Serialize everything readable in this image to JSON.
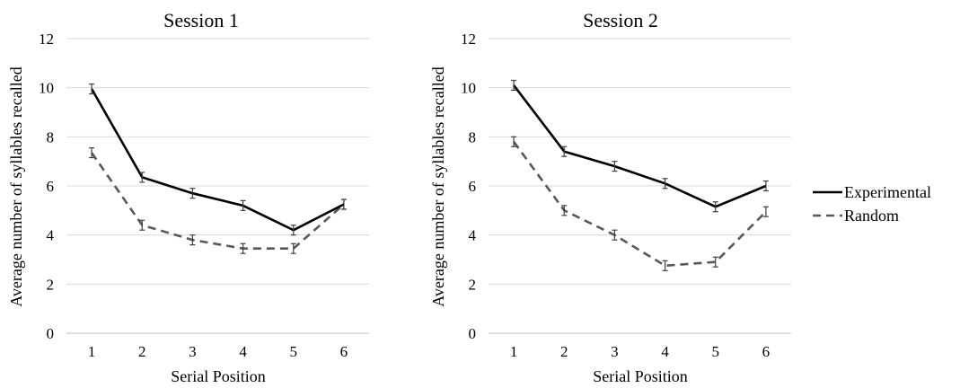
{
  "colors": {
    "experimental": "#000000",
    "random": "#595959",
    "grid": "#d9d9d9",
    "axis": "#bfbfbf",
    "error_bar": "#404040"
  },
  "legend": {
    "placement": "right",
    "items": [
      {
        "label": "Experimental",
        "color": "#000000",
        "style": "solid"
      },
      {
        "label": "Random",
        "color": "#595959",
        "style": "dashed"
      }
    ]
  },
  "chart_data": [
    {
      "type": "line",
      "title": "Session 1",
      "xlabel": "Serial Position",
      "ylabel": "Average number of syllables recalled",
      "x": [
        1,
        2,
        3,
        4,
        5,
        6
      ],
      "x_tick_labels": [
        "1",
        "2",
        "3",
        "4",
        "5",
        "6"
      ],
      "ylim": [
        0,
        12
      ],
      "y_ticks": [
        0,
        2,
        4,
        6,
        8,
        10,
        12
      ],
      "grid": "horizontal",
      "series": [
        {
          "name": "Experimental",
          "style": "solid",
          "values": [
            9.95,
            6.35,
            5.7,
            5.2,
            4.2,
            5.25
          ],
          "errors": [
            0.2,
            0.2,
            0.2,
            0.2,
            0.2,
            0.2
          ]
        },
        {
          "name": "Random",
          "style": "dashed",
          "values": [
            7.35,
            4.4,
            3.8,
            3.45,
            3.45,
            5.25
          ],
          "errors": [
            0.2,
            0.2,
            0.2,
            0.2,
            0.2,
            0.2
          ]
        }
      ]
    },
    {
      "type": "line",
      "title": "Session 2",
      "xlabel": "Serial Position",
      "ylabel": "Average number of syllables recalled",
      "x": [
        1,
        2,
        3,
        4,
        5,
        6
      ],
      "x_tick_labels": [
        "1",
        "2",
        "3",
        "4",
        "5",
        "6"
      ],
      "ylim": [
        0,
        12
      ],
      "y_ticks": [
        0,
        2,
        4,
        6,
        8,
        10,
        12
      ],
      "grid": "horizontal",
      "series": [
        {
          "name": "Experimental",
          "style": "solid",
          "values": [
            10.1,
            7.4,
            6.8,
            6.1,
            5.15,
            6.0
          ],
          "errors": [
            0.2,
            0.2,
            0.2,
            0.2,
            0.2,
            0.2
          ]
        },
        {
          "name": "Random",
          "style": "dashed",
          "values": [
            7.8,
            5.0,
            4.0,
            2.75,
            2.9,
            4.95
          ],
          "errors": [
            0.2,
            0.2,
            0.2,
            0.2,
            0.2,
            0.2
          ]
        }
      ]
    }
  ]
}
